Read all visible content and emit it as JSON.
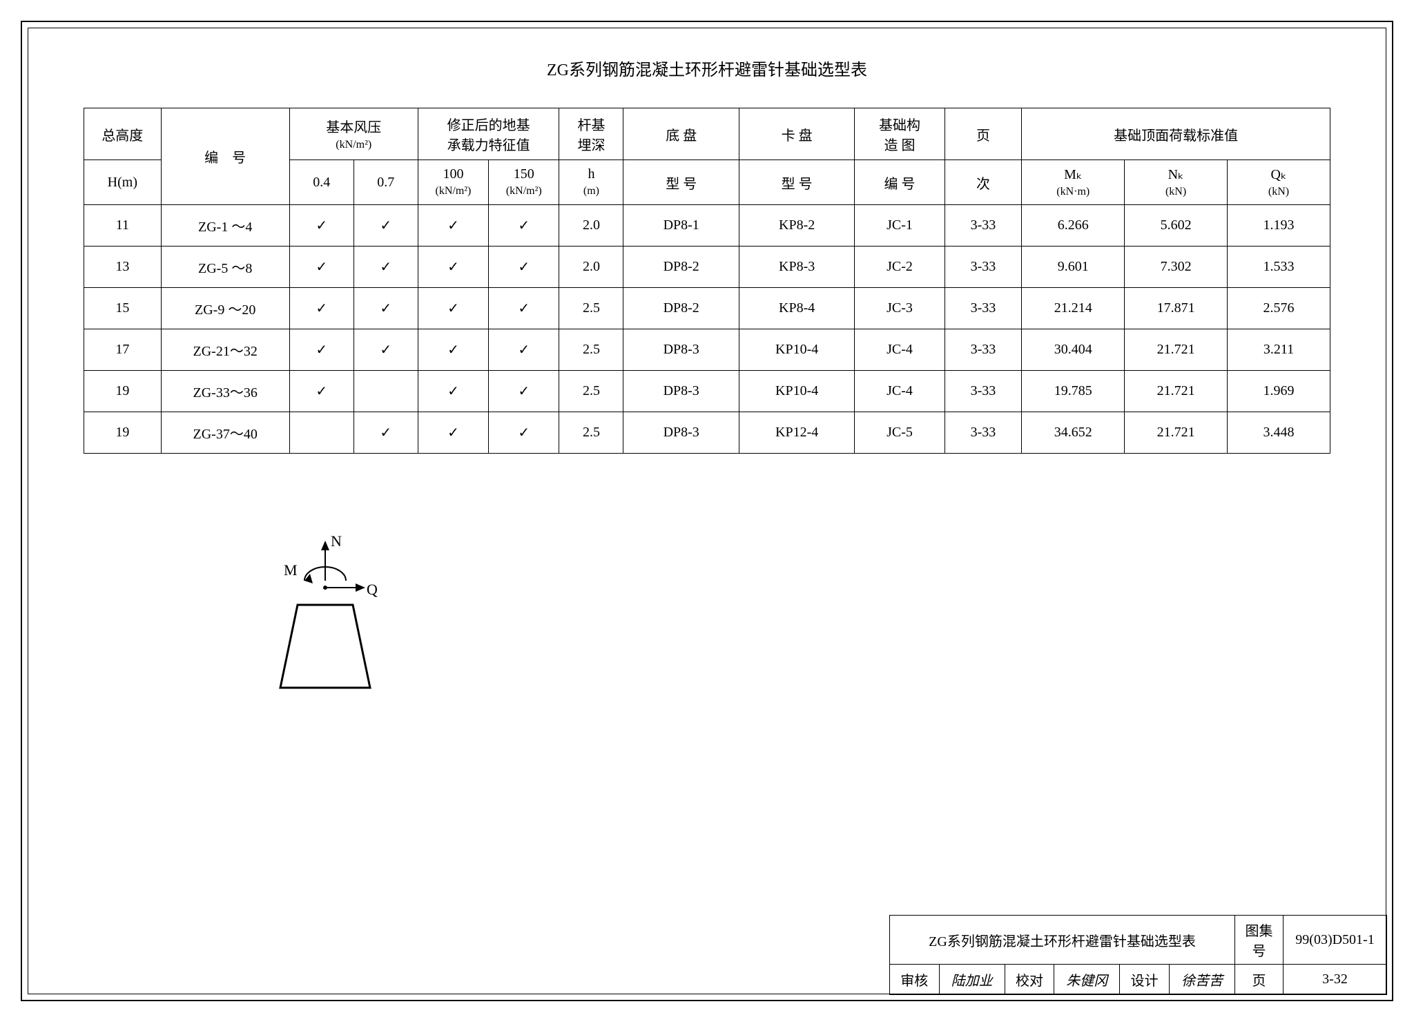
{
  "title": "ZG系列钢筋混凝土环形杆避雷针基础选型表",
  "headers": {
    "h_top": "总高度",
    "h_bottom": "H(m)",
    "code": "编　号",
    "wind_pressure": "基本风压",
    "wind_pressure_unit": "(kN/m²)",
    "wp_04": "0.4",
    "wp_07": "0.7",
    "bearing": "修正后的地基",
    "bearing2": "承载力特征值",
    "b_100": "100",
    "b_100_unit": "(kN/m²)",
    "b_150": "150",
    "b_150_unit": "(kN/m²)",
    "depth_top": "杆基",
    "depth_mid": "埋深",
    "depth_h": "h",
    "depth_unit": "(m)",
    "dp_top": "底 盘",
    "dp_bottom": "型 号",
    "kp_top": "卡 盘",
    "kp_bottom": "型 号",
    "jc_top": "基础构",
    "jc_mid": "造 图",
    "jc_bottom": "编 号",
    "page_top": "页",
    "page_bottom": "次",
    "load_top": "基础顶面荷载标准值",
    "mk": "Mₖ",
    "mk_unit": "(kN·m)",
    "nk": "Nₖ",
    "nk_unit": "(kN)",
    "qk": "Qₖ",
    "qk_unit": "(kN)"
  },
  "rows": [
    {
      "h": "11",
      "code": "ZG-1 ～4",
      "wp04": "✓",
      "wp07": "✓",
      "b100": "✓",
      "b150": "✓",
      "depth": "2.0",
      "dp": "DP8-1",
      "kp": "KP8-2",
      "jc": "JC-1",
      "page": "3-33",
      "mk": "6.266",
      "nk": "5.602",
      "qk": "1.193"
    },
    {
      "h": "13",
      "code": "ZG-5 ～8",
      "wp04": "✓",
      "wp07": "✓",
      "b100": "✓",
      "b150": "✓",
      "depth": "2.0",
      "dp": "DP8-2",
      "kp": "KP8-3",
      "jc": "JC-2",
      "page": "3-33",
      "mk": "9.601",
      "nk": "7.302",
      "qk": "1.533"
    },
    {
      "h": "15",
      "code": "ZG-9 ～20",
      "wp04": "✓",
      "wp07": "✓",
      "b100": "✓",
      "b150": "✓",
      "depth": "2.5",
      "dp": "DP8-2",
      "kp": "KP8-4",
      "jc": "JC-3",
      "page": "3-33",
      "mk": "21.214",
      "nk": "17.871",
      "qk": "2.576"
    },
    {
      "h": "17",
      "code": "ZG-21～32",
      "wp04": "✓",
      "wp07": "✓",
      "b100": "✓",
      "b150": "✓",
      "depth": "2.5",
      "dp": "DP8-3",
      "kp": "KP10-4",
      "jc": "JC-4",
      "page": "3-33",
      "mk": "30.404",
      "nk": "21.721",
      "qk": "3.211"
    },
    {
      "h": "19",
      "code": "ZG-33～36",
      "wp04": "✓",
      "wp07": "",
      "b100": "✓",
      "b150": "✓",
      "depth": "2.5",
      "dp": "DP8-3",
      "kp": "KP10-4",
      "jc": "JC-4",
      "page": "3-33",
      "mk": "19.785",
      "nk": "21.721",
      "qk": "1.969"
    },
    {
      "h": "19",
      "code": "ZG-37～40",
      "wp04": "",
      "wp07": "✓",
      "b100": "✓",
      "b150": "✓",
      "depth": "2.5",
      "dp": "DP8-3",
      "kp": "KP12-4",
      "jc": "JC-5",
      "page": "3-33",
      "mk": "34.652",
      "nk": "21.721",
      "qk": "3.448"
    }
  ],
  "diagram": {
    "N": "N",
    "M": "M",
    "Q": "Q"
  },
  "title_block": {
    "name": "ZG系列钢筋混凝土环形杆避雷针基础选型表",
    "atlas_label": "图集号",
    "atlas_no": "99(03)D501-1",
    "review_label": "审核",
    "review_sig": "陆加业",
    "check_label": "校对",
    "check_sig": "朱健冈",
    "design_label": "设计",
    "design_sig": "徐苦苦",
    "page_label": "页",
    "page_no": "3-32"
  },
  "styling": {
    "border_color": "#000000",
    "background": "#ffffff",
    "text_color": "#000000",
    "title_fontsize": 24,
    "cell_fontsize": 20,
    "font_family": "SimSun"
  }
}
